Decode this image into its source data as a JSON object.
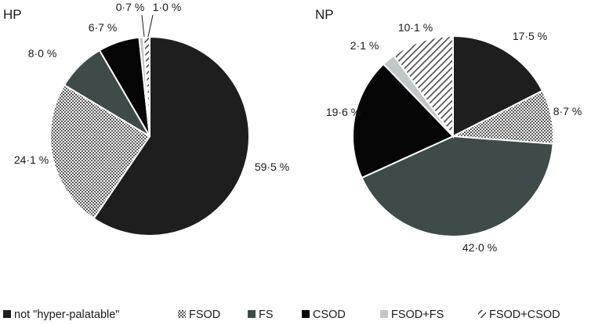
{
  "chart_data": [
    {
      "type": "pie",
      "title": "HP",
      "slices": [
        {
          "category": "not \"hyper-palatable\"",
          "value": 59.5,
          "label": "59·5 %"
        },
        {
          "category": "FSOD",
          "value": 24.1,
          "label": "24·1 %"
        },
        {
          "category": "FS",
          "value": 8.0,
          "label": "8·0 %"
        },
        {
          "category": "CSOD",
          "value": 6.7,
          "label": "6·7 %"
        },
        {
          "category": "FSOD+FS",
          "value": 0.7,
          "label": "0·7 %"
        },
        {
          "category": "FSOD+CSOD",
          "value": 1.0,
          "label": "1·0 %"
        }
      ]
    },
    {
      "type": "pie",
      "title": "NP",
      "slices": [
        {
          "category": "not \"hyper-palatable\"",
          "value": 17.5,
          "label": "17·5 %"
        },
        {
          "category": "FSOD",
          "value": 8.7,
          "label": "8·7 %"
        },
        {
          "category": "FS",
          "value": 42.0,
          "label": "42·0 %"
        },
        {
          "category": "CSOD",
          "value": 19.6,
          "label": "19·6 %"
        },
        {
          "category": "FSOD+FS",
          "value": 2.1,
          "label": "2·1 %"
        },
        {
          "category": "FSOD+CSOD",
          "value": 10.1,
          "label": "10·1 %"
        }
      ]
    }
  ],
  "legend": {
    "placement": "bottom",
    "items": [
      {
        "label": "not \"hyper-palatable\"",
        "color": "#1e1e1e",
        "pattern": "solid"
      },
      {
        "label": "FSOD",
        "color": "#7a7a7a",
        "pattern": "dots"
      },
      {
        "label": "FS",
        "color": "#3f4b4b",
        "pattern": "solid"
      },
      {
        "label": "CSOD",
        "color": "#050505",
        "pattern": "solid"
      },
      {
        "label": "FSOD+FS",
        "color": "#c2c7c7",
        "pattern": "solid"
      },
      {
        "label": "FSOD+CSOD",
        "color": "#666666",
        "pattern": "stripes"
      }
    ]
  }
}
